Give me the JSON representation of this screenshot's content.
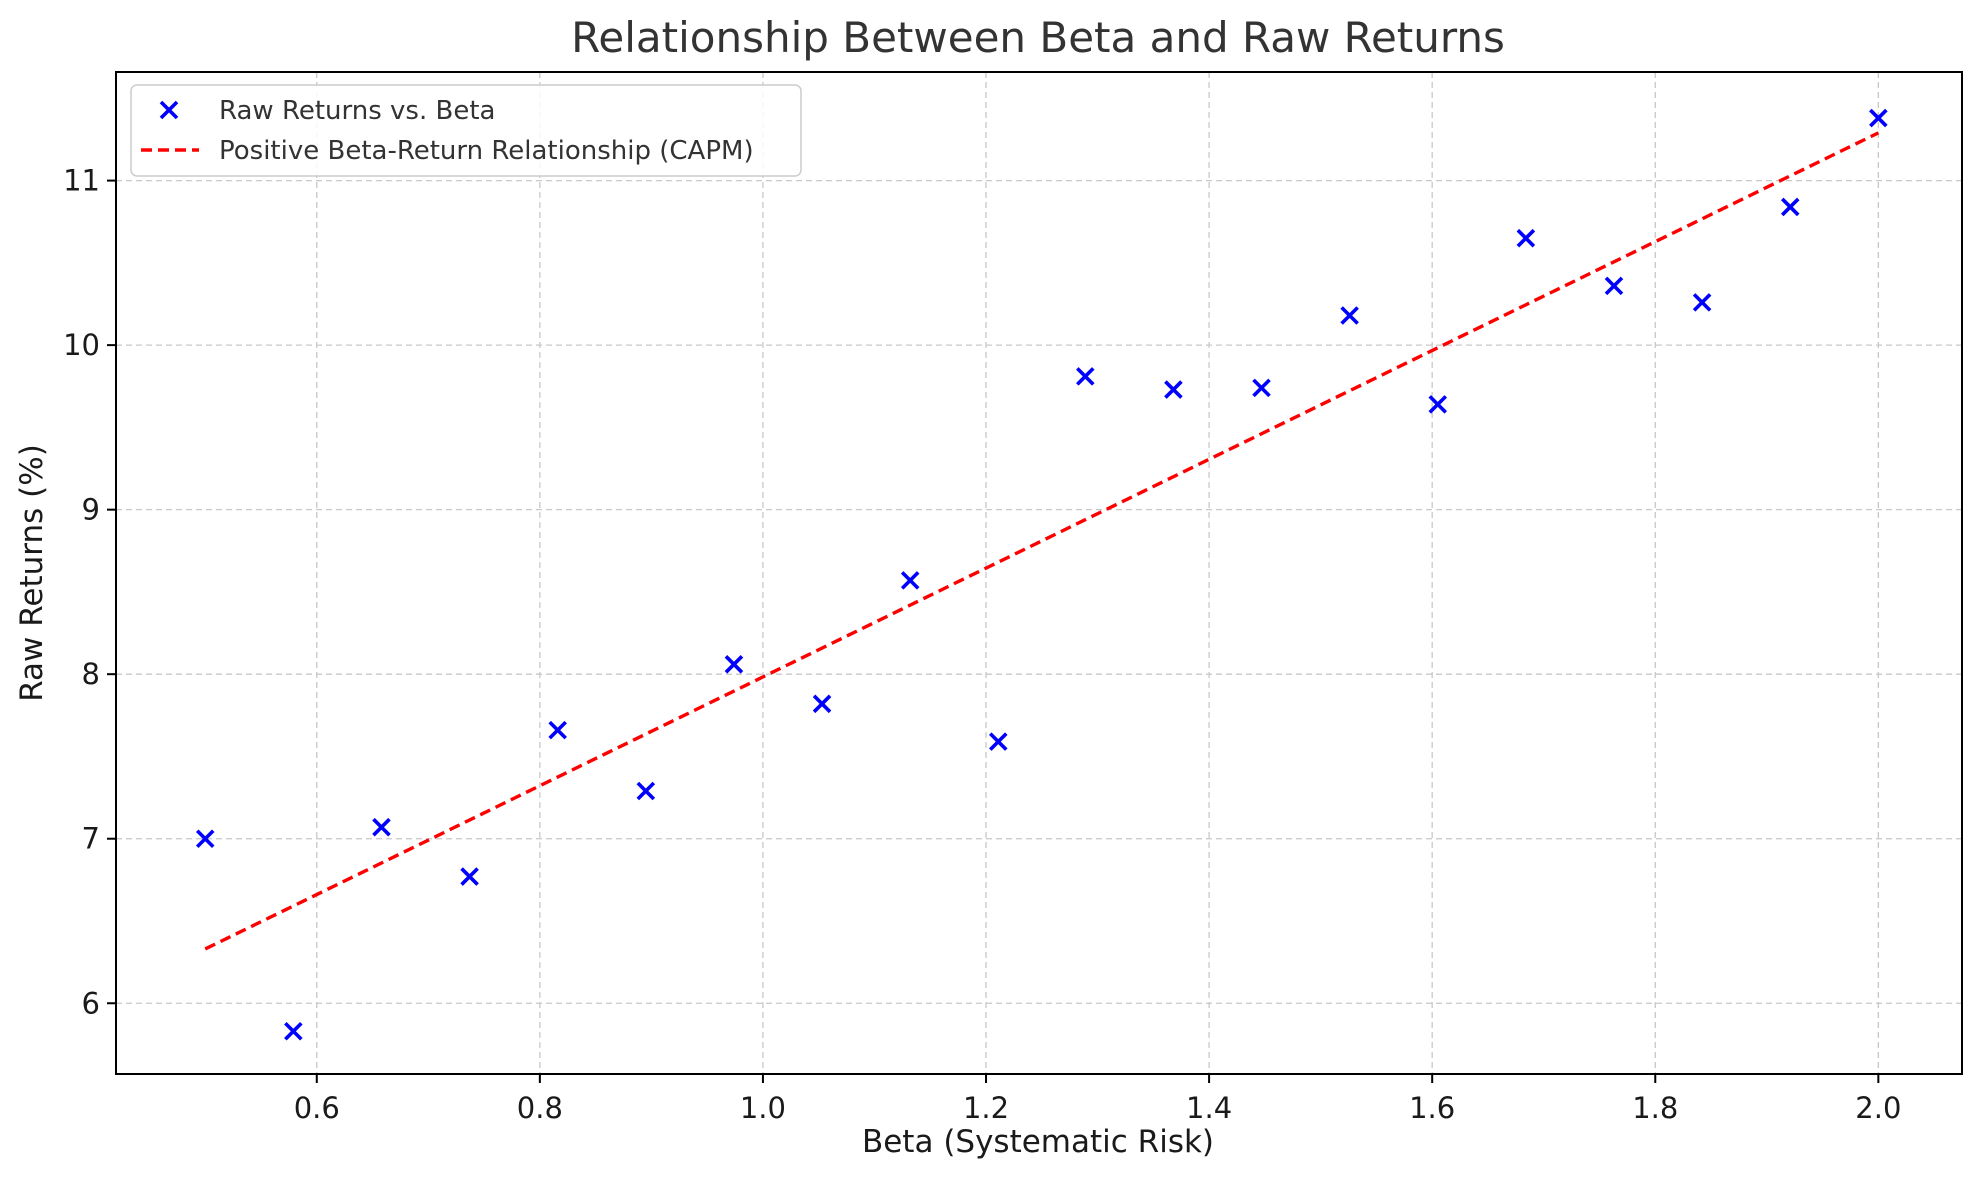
{
  "chart_data": {
    "type": "scatter",
    "title": "Relationship Between Beta and Raw Returns",
    "xlabel": "Beta (Systematic Risk)",
    "ylabel": "Raw Returns (%)",
    "xlim": [
      0.42,
      2.075
    ],
    "ylim": [
      5.57,
      11.66
    ],
    "xticks": [
      0.6,
      0.8,
      1.0,
      1.2,
      1.4,
      1.6,
      1.8,
      2.0
    ],
    "xtick_labels": [
      "0.6",
      "0.8",
      "1.0",
      "1.2",
      "1.4",
      "1.6",
      "1.8",
      "2.0"
    ],
    "yticks": [
      6,
      7,
      8,
      9,
      10,
      11
    ],
    "ytick_labels": [
      "6",
      "7",
      "8",
      "9",
      "10",
      "11"
    ],
    "grid": true,
    "legend_position": "top-left",
    "series": [
      {
        "name": "Raw Returns vs. Beta",
        "kind": "scatter",
        "marker": "x",
        "color": "#0000ff",
        "x": [
          0.5,
          0.579,
          0.658,
          0.737,
          0.816,
          0.895,
          0.974,
          1.053,
          1.132,
          1.211,
          1.289,
          1.368,
          1.447,
          1.526,
          1.605,
          1.684,
          1.763,
          1.842,
          1.921,
          2.0
        ],
        "y": [
          7.0,
          5.83,
          7.07,
          6.77,
          7.66,
          7.29,
          8.06,
          7.82,
          8.57,
          7.59,
          9.81,
          9.73,
          9.74,
          10.18,
          9.64,
          10.65,
          10.36,
          10.26,
          10.84,
          11.38
        ]
      },
      {
        "name": "Positive Beta-Return Relationship (CAPM)",
        "kind": "line",
        "style": "dashed",
        "color": "#ff0000",
        "x": [
          0.5,
          2.0
        ],
        "y": [
          6.33,
          11.29
        ]
      }
    ]
  }
}
